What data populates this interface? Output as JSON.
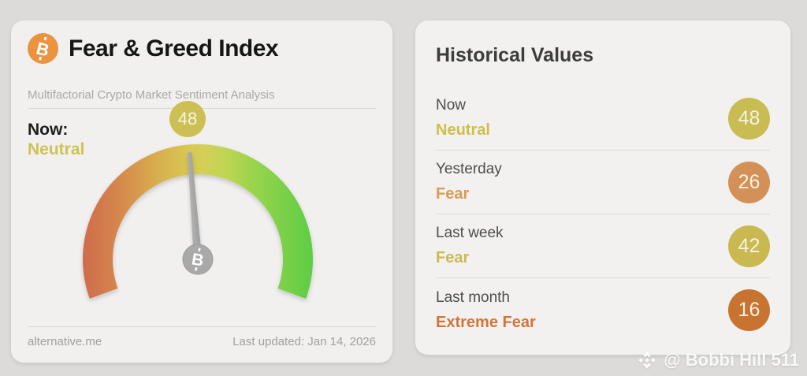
{
  "gauge_card": {
    "title": "Fear & Greed Index",
    "subtitle": "Multifactorial Crypto Market Sentiment Analysis",
    "now_label": "Now:",
    "now_sentiment": "Neutral",
    "now_sentiment_color": "#d0c254",
    "now_value": "48",
    "now_value_color": "#ccc055",
    "footer_left": "alternative.me",
    "footer_right": "Last updated: Jan 14, 2026"
  },
  "history_card": {
    "title": "Historical Values",
    "rows": [
      {
        "label": "Now",
        "sentiment": "Neutral",
        "value": "48",
        "badge_color": "#c9bc52",
        "text_color": "#cdbf4a"
      },
      {
        "label": "Yesterday",
        "sentiment": "Fear",
        "value": "26",
        "badge_color": "#d39157",
        "text_color": "#d99b55"
      },
      {
        "label": "Last week",
        "sentiment": "Fear",
        "value": "42",
        "badge_color": "#c9b950",
        "text_color": "#ccba4f"
      },
      {
        "label": "Last month",
        "sentiment": "Extreme Fear",
        "value": "16",
        "badge_color": "#c87430",
        "text_color": "#d0763a"
      }
    ]
  },
  "watermark": {
    "handle": "@ Bobbi Hill 511"
  },
  "icons": {
    "bitcoin_glyph": "B",
    "bitcoin_icon_color": "#ec9340"
  },
  "chart_data": {
    "type": "gauge",
    "title": "Fear & Greed Index",
    "value": 48,
    "min": 0,
    "max": 100,
    "current_label": "Neutral",
    "arc_sweep_degrees": 220,
    "scale_colors": [
      "#cf6c4b",
      "#d8a94e",
      "#d5cf56",
      "#9bd54e",
      "#5ecd43"
    ],
    "needle_color": "#a8a8a8",
    "history": [
      {
        "period": "Now",
        "sentiment": "Neutral",
        "value": 48
      },
      {
        "period": "Yesterday",
        "sentiment": "Fear",
        "value": 26
      },
      {
        "period": "Last week",
        "sentiment": "Fear",
        "value": 42
      },
      {
        "period": "Last month",
        "sentiment": "Extreme Fear",
        "value": 16
      }
    ]
  }
}
